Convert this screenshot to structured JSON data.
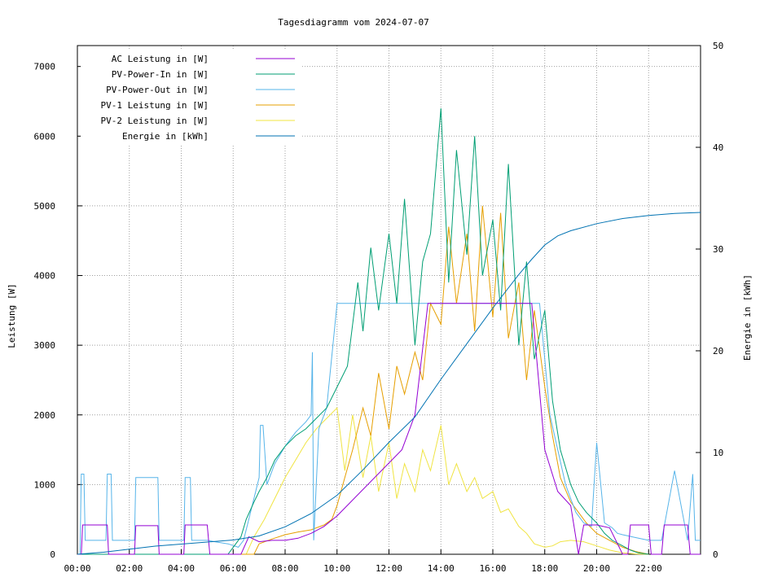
{
  "chart_data": {
    "type": "line",
    "title": "Tagesdiagramm vom 2024-07-07",
    "ylabel": "Leistung [W]",
    "y2label": "Energie in [kWh]",
    "xlim": [
      0,
      24
    ],
    "ylim": [
      0,
      7300
    ],
    "y2lim": [
      0,
      50
    ],
    "x_ticks": [
      "00:00",
      "02:00",
      "04:00",
      "06:00",
      "08:00",
      "10:00",
      "12:00",
      "14:00",
      "16:00",
      "18:00",
      "20:00",
      "22:00"
    ],
    "y_ticks": [
      0,
      1000,
      2000,
      3000,
      4000,
      5000,
      6000,
      7000
    ],
    "y2_ticks": [
      0,
      10,
      20,
      30,
      40,
      50
    ],
    "grid": true,
    "legend_position": "top-left",
    "series": [
      {
        "name": "AC Leistung in [W]",
        "axis": "y1",
        "color": "#9400d3",
        "x": [
          0,
          0.15,
          0.2,
          1.15,
          1.2,
          2.2,
          2.25,
          3.1,
          3.15,
          4.1,
          4.15,
          5.0,
          5.1,
          6.3,
          6.6,
          7.0,
          7.5,
          8.0,
          8.5,
          9.0,
          9.5,
          10.0,
          12.5,
          13.0,
          13.5,
          17.5,
          18.0,
          18.5,
          19.0,
          19.3,
          19.5,
          20.0,
          20.5,
          21.0,
          21.2,
          21.3,
          22.0,
          22.1,
          22.5,
          22.6,
          23.5,
          23.6,
          24.0
        ],
        "y": [
          0,
          0,
          420,
          420,
          0,
          0,
          410,
          410,
          0,
          0,
          420,
          420,
          0,
          0,
          250,
          180,
          200,
          200,
          230,
          300,
          400,
          550,
          1500,
          2000,
          3600,
          3600,
          1500,
          900,
          700,
          0,
          420,
          420,
          380,
          0,
          0,
          420,
          420,
          0,
          0,
          420,
          420,
          0,
          0
        ]
      },
      {
        "name": "PV-Power-In in [W]",
        "axis": "y1",
        "color": "#009e73",
        "x": [
          0,
          5.8,
          6.0,
          6.3,
          6.5,
          6.8,
          7.0,
          7.3,
          7.6,
          8.0,
          8.4,
          8.8,
          9.2,
          9.6,
          10.0,
          10.4,
          10.8,
          11.0,
          11.3,
          11.6,
          12.0,
          12.3,
          12.6,
          13.0,
          13.3,
          13.6,
          14.0,
          14.3,
          14.6,
          15.0,
          15.3,
          15.6,
          16.0,
          16.3,
          16.6,
          17.0,
          17.3,
          17.6,
          18.0,
          18.3,
          18.6,
          19.0,
          19.3,
          19.6,
          20.0,
          20.3,
          20.6,
          21.0,
          21.3,
          21.6,
          22.0
        ],
        "y": [
          0,
          0,
          100,
          250,
          500,
          750,
          900,
          1100,
          1350,
          1550,
          1700,
          1800,
          1950,
          2100,
          2400,
          2700,
          3900,
          3200,
          4400,
          3500,
          4600,
          3600,
          5100,
          3000,
          4200,
          4600,
          6400,
          3900,
          5800,
          4300,
          6000,
          4000,
          4800,
          3500,
          5600,
          3000,
          4200,
          2800,
          3500,
          2200,
          1500,
          1000,
          750,
          600,
          450,
          300,
          200,
          120,
          60,
          20,
          0
        ]
      },
      {
        "name": "PV-Power-Out in [W]",
        "axis": "y1",
        "color": "#56b4e9",
        "x": [
          0,
          0.1,
          0.15,
          0.25,
          0.3,
          1.1,
          1.15,
          1.3,
          1.35,
          2.2,
          2.25,
          3.1,
          3.15,
          4.1,
          4.15,
          4.35,
          4.4,
          5.0,
          5.3,
          5.8,
          6.2,
          6.4,
          6.6,
          7.0,
          7.05,
          7.15,
          7.3,
          7.6,
          8.0,
          8.4,
          8.8,
          9.0,
          9.05,
          9.1,
          9.3,
          9.6,
          10.0,
          10.2,
          10.3,
          10.5,
          11.0,
          11.5,
          12.0,
          12.5,
          13.0,
          13.2,
          13.5,
          14.0,
          14.5,
          15.0,
          15.5,
          16.0,
          16.5,
          17.0,
          17.5,
          17.8,
          17.9,
          18.2,
          18.5,
          18.8,
          19.0,
          19.2,
          19.5,
          19.8,
          20.0,
          20.3,
          20.6,
          20.8,
          21.0,
          21.5,
          22.0,
          22.5,
          23.0,
          23.5,
          23.7,
          23.8,
          24.0
        ],
        "y": [
          0,
          0,
          1150,
          1150,
          200,
          200,
          1150,
          1150,
          200,
          200,
          1100,
          1100,
          200,
          200,
          1100,
          1100,
          200,
          200,
          180,
          150,
          100,
          200,
          500,
          1100,
          1850,
          1850,
          1000,
          1300,
          1550,
          1750,
          1900,
          2000,
          2900,
          200,
          1800,
          2100,
          3600,
          3600,
          3600,
          3600,
          3600,
          3600,
          3600,
          3600,
          3600,
          3600,
          3600,
          3600,
          3600,
          3600,
          3600,
          3600,
          3600,
          3600,
          3600,
          3600,
          3200,
          2000,
          1500,
          1000,
          800,
          600,
          450,
          400,
          1600,
          450,
          380,
          300,
          280,
          240,
          200,
          200,
          1200,
          200,
          1150,
          200,
          200
        ]
      },
      {
        "name": "PV-1 Leistung in [W]",
        "axis": "y1",
        "color": "#e69f00",
        "x": [
          0,
          6.8,
          7.0,
          7.5,
          8.0,
          8.5,
          9.0,
          9.5,
          9.8,
          10.0,
          10.3,
          10.6,
          11.0,
          11.3,
          11.6,
          12.0,
          12.3,
          12.6,
          13.0,
          13.3,
          13.6,
          14.0,
          14.3,
          14.6,
          15.0,
          15.3,
          15.6,
          16.0,
          16.3,
          16.6,
          17.0,
          17.3,
          17.6,
          18.0,
          18.3,
          18.6,
          19.0,
          19.3,
          19.6,
          20.0,
          20.5,
          21.0,
          21.5,
          22.0
        ],
        "y": [
          0,
          0,
          150,
          220,
          280,
          320,
          350,
          420,
          500,
          700,
          1100,
          1500,
          2100,
          1700,
          2600,
          1800,
          2700,
          2300,
          2900,
          2500,
          3600,
          3300,
          4700,
          3600,
          4600,
          3200,
          5000,
          3400,
          4900,
          3100,
          3900,
          2500,
          3500,
          2400,
          1700,
          1100,
          750,
          600,
          450,
          300,
          200,
          100,
          40,
          0
        ]
      },
      {
        "name": "PV-2 Leistung in [W]",
        "axis": "y1",
        "color": "#f0e442",
        "x": [
          0,
          6.5,
          6.8,
          7.2,
          7.6,
          8.0,
          8.4,
          8.8,
          9.2,
          9.6,
          10.0,
          10.3,
          10.6,
          11.0,
          11.3,
          11.6,
          12.0,
          12.3,
          12.6,
          13.0,
          13.3,
          13.6,
          14.0,
          14.3,
          14.6,
          15.0,
          15.3,
          15.6,
          16.0,
          16.3,
          16.6,
          17.0,
          17.3,
          17.6,
          18.0,
          18.3,
          18.6,
          19.0,
          19.5,
          20.0,
          20.5,
          21.0,
          21.5,
          22.0
        ],
        "y": [
          0,
          0,
          250,
          500,
          800,
          1100,
          1350,
          1600,
          1800,
          1950,
          2100,
          1200,
          2000,
          1100,
          1700,
          900,
          1600,
          800,
          1300,
          900,
          1500,
          1200,
          1850,
          1000,
          1300,
          900,
          1100,
          800,
          900,
          600,
          650,
          400,
          300,
          150,
          100,
          120,
          180,
          200,
          180,
          120,
          60,
          20,
          5,
          0
        ]
      },
      {
        "name": "Energie in [kWh]",
        "axis": "y2",
        "color": "#0072b2",
        "x": [
          0,
          0.5,
          1,
          2,
          3,
          4,
          5,
          6,
          7,
          8,
          9,
          10,
          11,
          12,
          13,
          14,
          15,
          16,
          17,
          17.5,
          18,
          18.5,
          19,
          20,
          21,
          22,
          23,
          24
        ],
        "y": [
          0,
          0.1,
          0.2,
          0.5,
          0.8,
          1.0,
          1.2,
          1.4,
          1.8,
          2.7,
          4.0,
          5.8,
          8.3,
          11.0,
          13.5,
          17.2,
          20.7,
          24.2,
          27.5,
          29.0,
          30.4,
          31.3,
          31.8,
          32.5,
          33.0,
          33.3,
          33.5,
          33.6
        ]
      }
    ]
  }
}
